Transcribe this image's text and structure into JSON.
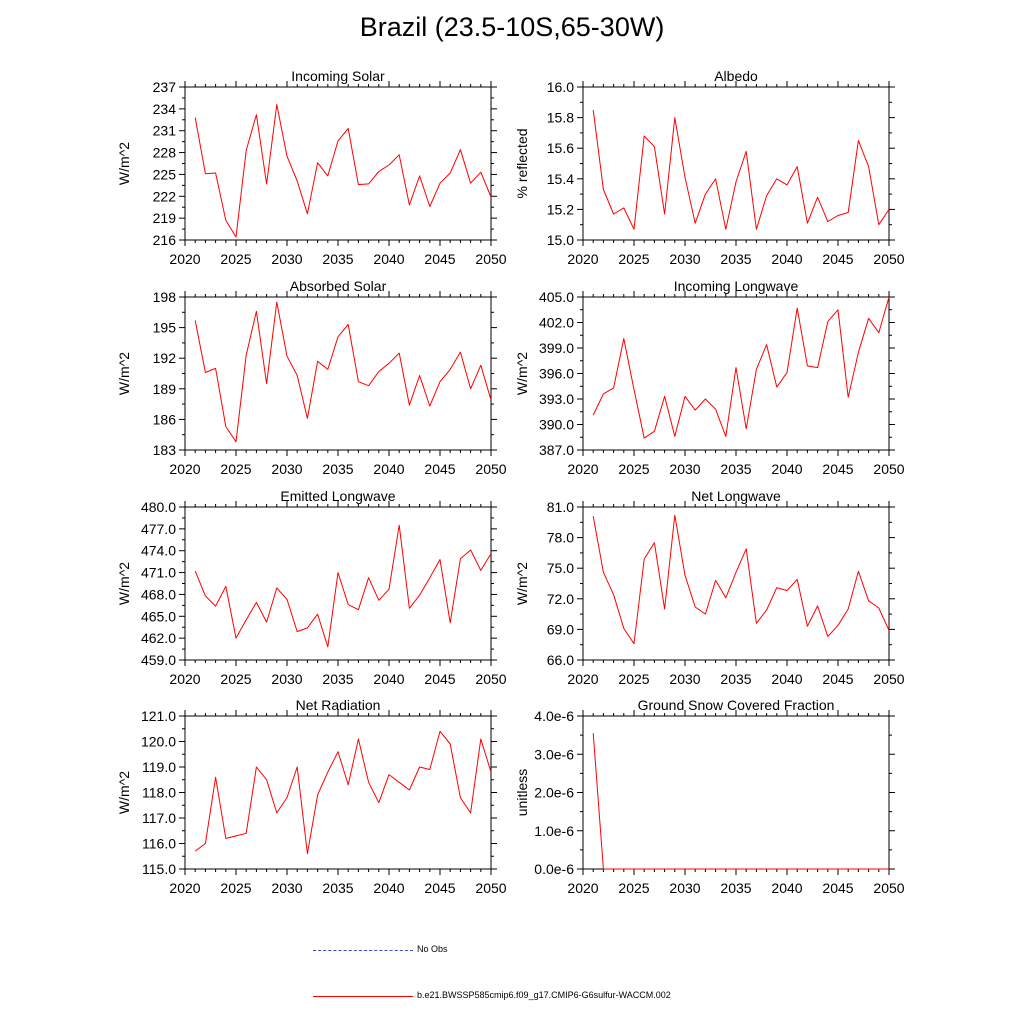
{
  "page": {
    "title": "Brazil (23.5-10S,65-30W)"
  },
  "legend": {
    "entries": [
      {
        "label": "No Obs",
        "color": "#3b4cc0",
        "style": "dashed"
      },
      {
        "label": "b.e21.BWSSP585cmip6.f09_g17.CMIP6-G6sulfur-WACCM.002",
        "color": "#ff0000",
        "style": "solid"
      }
    ]
  },
  "chart_data": [
    {
      "type": "line",
      "title": "Incoming Solar",
      "ylabel": "W/m^2",
      "xlim": [
        2020,
        2050
      ],
      "ylim": [
        216,
        237
      ],
      "yticks": [
        "216",
        "219",
        "222",
        "225",
        "228",
        "231",
        "234",
        "237"
      ],
      "xticks": [
        "2020",
        "2025",
        "2030",
        "2035",
        "2040",
        "2045",
        "2050"
      ],
      "series": [
        {
          "color": "#ff0000",
          "x": [
            2021,
            2022,
            2023,
            2024,
            2025,
            2026,
            2027,
            2028,
            2029,
            2030,
            2031,
            2032,
            2033,
            2034,
            2035,
            2036,
            2037,
            2038,
            2039,
            2040,
            2041,
            2042,
            2043,
            2044,
            2045,
            2046,
            2047,
            2048,
            2049,
            2050
          ],
          "y": [
            232.8,
            225.1,
            225.2,
            218.7,
            216.4,
            228.3,
            233.2,
            223.7,
            234.6,
            227.5,
            224.1,
            219.6,
            226.6,
            224.8,
            229.6,
            231.3,
            223.6,
            223.7,
            225.4,
            226.3,
            227.7,
            220.8,
            224.8,
            220.6,
            223.8,
            225.2,
            228.4,
            223.8,
            225.3,
            221.9
          ]
        }
      ]
    },
    {
      "type": "line",
      "title": "Albedo",
      "ylabel": "% reflected",
      "xlim": [
        2020,
        2050
      ],
      "ylim": [
        15.0,
        16.0
      ],
      "yticks": [
        "15.0",
        "15.2",
        "15.4",
        "15.6",
        "15.8",
        "16.0"
      ],
      "xticks": [
        "2020",
        "2025",
        "2030",
        "2035",
        "2040",
        "2045",
        "2050"
      ],
      "series": [
        {
          "color": "#ff0000",
          "x": [
            2021,
            2022,
            2023,
            2024,
            2025,
            2026,
            2027,
            2028,
            2029,
            2030,
            2031,
            2032,
            2033,
            2034,
            2035,
            2036,
            2037,
            2038,
            2039,
            2040,
            2041,
            2042,
            2043,
            2044,
            2045,
            2046,
            2047,
            2048,
            2049,
            2050
          ],
          "y": [
            15.85,
            15.33,
            15.17,
            15.21,
            15.07,
            15.68,
            15.61,
            15.17,
            15.8,
            15.41,
            15.11,
            15.3,
            15.4,
            15.07,
            15.38,
            15.58,
            15.07,
            15.29,
            15.4,
            15.36,
            15.48,
            15.11,
            15.28,
            15.12,
            15.16,
            15.18,
            15.65,
            15.48,
            15.1,
            15.2
          ]
        }
      ]
    },
    {
      "type": "line",
      "title": "Absorbed Solar",
      "ylabel": "W/m^2",
      "xlim": [
        2020,
        2050
      ],
      "ylim": [
        183,
        198
      ],
      "yticks": [
        "183",
        "186",
        "189",
        "192",
        "195",
        "198"
      ],
      "xticks": [
        "2020",
        "2025",
        "2030",
        "2035",
        "2040",
        "2045",
        "2050"
      ],
      "series": [
        {
          "color": "#ff0000",
          "x": [
            2021,
            2022,
            2023,
            2024,
            2025,
            2026,
            2027,
            2028,
            2029,
            2030,
            2031,
            2032,
            2033,
            2034,
            2035,
            2036,
            2037,
            2038,
            2039,
            2040,
            2041,
            2042,
            2043,
            2044,
            2045,
            2046,
            2047,
            2048,
            2049,
            2050
          ],
          "y": [
            195.7,
            190.6,
            191.0,
            185.3,
            183.8,
            192.3,
            196.6,
            189.5,
            197.5,
            192.2,
            190.3,
            186.1,
            191.7,
            190.9,
            194.1,
            195.3,
            189.7,
            189.3,
            190.7,
            191.5,
            192.5,
            187.4,
            190.3,
            187.3,
            189.7,
            190.9,
            192.6,
            189.0,
            191.3,
            187.9
          ]
        }
      ]
    },
    {
      "type": "line",
      "title": "Incoming Longwave",
      "ylabel": "W/m^2",
      "xlim": [
        2020,
        2050
      ],
      "ylim": [
        387.0,
        405.0
      ],
      "yticks": [
        "387.0",
        "390.0",
        "393.0",
        "396.0",
        "399.0",
        "402.0",
        "405.0"
      ],
      "xticks": [
        "2020",
        "2025",
        "2030",
        "2035",
        "2040",
        "2045",
        "2050"
      ],
      "series": [
        {
          "color": "#ff0000",
          "x": [
            2021,
            2022,
            2023,
            2024,
            2025,
            2026,
            2027,
            2028,
            2029,
            2030,
            2031,
            2032,
            2033,
            2034,
            2035,
            2036,
            2037,
            2038,
            2039,
            2040,
            2041,
            2042,
            2043,
            2044,
            2045,
            2046,
            2047,
            2048,
            2049,
            2050
          ],
          "y": [
            391.1,
            393.6,
            394.3,
            400.1,
            394.1,
            388.4,
            389.2,
            393.3,
            388.6,
            393.3,
            391.7,
            393.0,
            391.8,
            388.6,
            396.7,
            389.5,
            396.5,
            399.4,
            394.4,
            396.1,
            403.7,
            396.9,
            396.7,
            402.1,
            403.5,
            393.2,
            398.5,
            402.5,
            400.8,
            405.0
          ]
        }
      ]
    },
    {
      "type": "line",
      "title": "Emitted Longwave",
      "ylabel": "W/m^2",
      "xlim": [
        2020,
        2050
      ],
      "ylim": [
        459.0,
        480.0
      ],
      "yticks": [
        "459.0",
        "462.0",
        "465.0",
        "468.0",
        "471.0",
        "474.0",
        "477.0",
        "480.0"
      ],
      "xticks": [
        "2020",
        "2025",
        "2030",
        "2035",
        "2040",
        "2045",
        "2050"
      ],
      "series": [
        {
          "color": "#ff0000",
          "x": [
            2021,
            2022,
            2023,
            2024,
            2025,
            2026,
            2027,
            2028,
            2029,
            2030,
            2031,
            2032,
            2033,
            2034,
            2035,
            2036,
            2037,
            2038,
            2039,
            2040,
            2041,
            2042,
            2043,
            2044,
            2045,
            2046,
            2047,
            2048,
            2049,
            2050
          ],
          "y": [
            471.2,
            467.8,
            466.4,
            469.1,
            462.0,
            464.5,
            466.9,
            464.2,
            468.9,
            467.3,
            462.9,
            463.4,
            465.3,
            460.8,
            471.0,
            466.6,
            465.9,
            470.3,
            467.2,
            468.7,
            477.5,
            466.1,
            467.9,
            470.3,
            472.8,
            464.1,
            472.9,
            474.1,
            471.3,
            473.6
          ]
        }
      ]
    },
    {
      "type": "line",
      "title": "Net Longwave",
      "ylabel": "W/m^2",
      "xlim": [
        2020,
        2050
      ],
      "ylim": [
        66.0,
        81.0
      ],
      "yticks": [
        "66.0",
        "69.0",
        "72.0",
        "75.0",
        "78.0",
        "81.0"
      ],
      "xticks": [
        "2020",
        "2025",
        "2030",
        "2035",
        "2040",
        "2045",
        "2050"
      ],
      "series": [
        {
          "color": "#ff0000",
          "x": [
            2021,
            2022,
            2023,
            2024,
            2025,
            2026,
            2027,
            2028,
            2029,
            2030,
            2031,
            2032,
            2033,
            2034,
            2035,
            2036,
            2037,
            2038,
            2039,
            2040,
            2041,
            2042,
            2043,
            2044,
            2045,
            2046,
            2047,
            2048,
            2049,
            2050
          ],
          "y": [
            80.1,
            74.6,
            72.4,
            69.1,
            67.6,
            75.9,
            77.5,
            71.0,
            80.2,
            74.3,
            71.2,
            70.5,
            73.8,
            72.1,
            74.6,
            76.9,
            69.6,
            70.9,
            73.1,
            72.8,
            73.9,
            69.3,
            71.3,
            68.3,
            69.4,
            71.0,
            74.7,
            71.8,
            71.1,
            68.9
          ]
        }
      ]
    },
    {
      "type": "line",
      "title": "Net Radiation",
      "ylabel": "W/m^2",
      "xlim": [
        2020,
        2050
      ],
      "ylim": [
        115.0,
        121.0
      ],
      "yticks": [
        "115.0",
        "116.0",
        "117.0",
        "118.0",
        "119.0",
        "120.0",
        "121.0"
      ],
      "xticks": [
        "2020",
        "2025",
        "2030",
        "2035",
        "2040",
        "2045",
        "2050"
      ],
      "series": [
        {
          "color": "#ff0000",
          "x": [
            2021,
            2022,
            2023,
            2024,
            2025,
            2026,
            2027,
            2028,
            2029,
            2030,
            2031,
            2032,
            2033,
            2034,
            2035,
            2036,
            2037,
            2038,
            2039,
            2040,
            2041,
            2042,
            2043,
            2044,
            2045,
            2046,
            2047,
            2048,
            2049,
            2050
          ],
          "y": [
            115.7,
            116.0,
            118.6,
            116.2,
            116.3,
            116.4,
            119.0,
            118.5,
            117.2,
            117.8,
            119.0,
            115.6,
            117.9,
            118.8,
            119.6,
            118.3,
            120.1,
            118.4,
            117.6,
            118.7,
            118.4,
            118.1,
            119.0,
            118.9,
            120.4,
            119.9,
            117.8,
            117.2,
            120.1,
            118.8
          ]
        }
      ]
    },
    {
      "type": "line",
      "title": "Ground Snow Covered Fraction",
      "ylabel": "unitless",
      "xlim": [
        2020,
        2050
      ],
      "ylim": [
        0,
        4e-06
      ],
      "yticks": [
        "0.0e-6",
        "1.0e-6",
        "2.0e-6",
        "3.0e-6",
        "4.0e-6"
      ],
      "xticks": [
        "2020",
        "2025",
        "2030",
        "2035",
        "2040",
        "2045",
        "2050"
      ],
      "series": [
        {
          "color": "#ff0000",
          "x": [
            2021,
            2022,
            2023,
            2024,
            2025,
            2026,
            2027,
            2028,
            2029,
            2030,
            2031,
            2032,
            2033,
            2034,
            2035,
            2036,
            2037,
            2038,
            2039,
            2040,
            2041,
            2042,
            2043,
            2044,
            2045,
            2046,
            2047,
            2048,
            2049,
            2050
          ],
          "y": [
            3.55e-06,
            0,
            0,
            0,
            0,
            0,
            0,
            0,
            0,
            0,
            0,
            0,
            0,
            0,
            0,
            0,
            0,
            0,
            0,
            0,
            0,
            0,
            0,
            0,
            0,
            0,
            0,
            0,
            0,
            0
          ]
        }
      ]
    }
  ]
}
